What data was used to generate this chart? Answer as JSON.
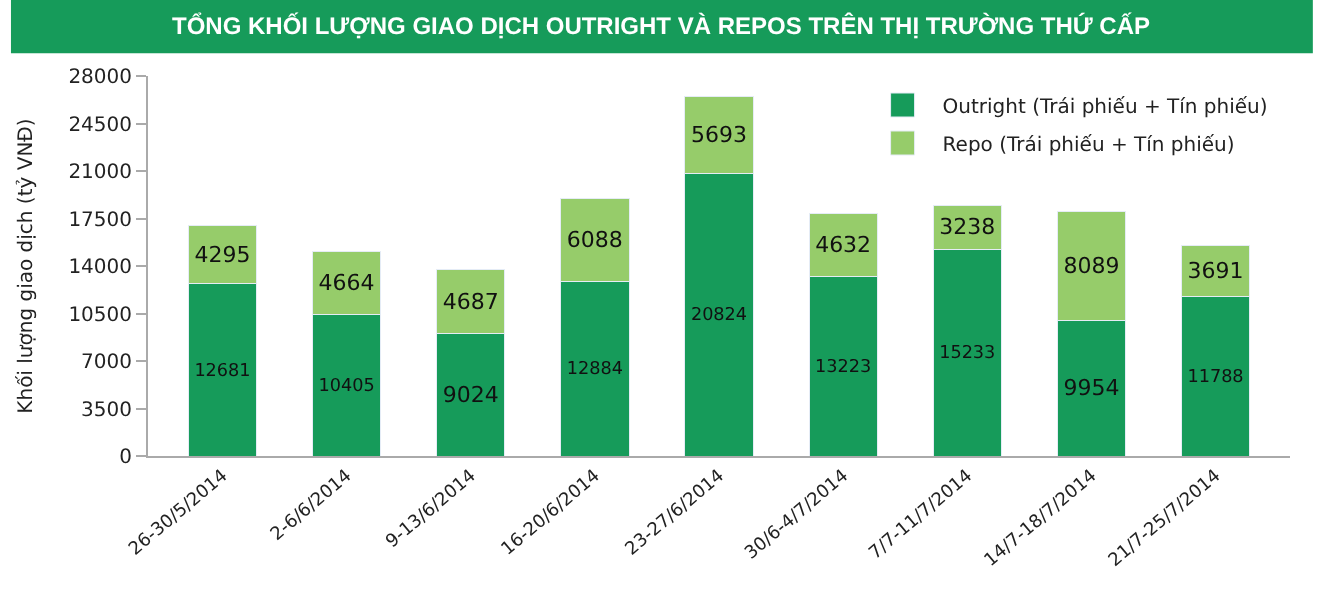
{
  "chart_data": {
    "type": "bar",
    "title": "TỔNG KHỐI LƯỢNG GIAO DỊCH OUTRIGHT VÀ REPOS TRÊN THỊ TRƯỜNG THỨ CẤP",
    "ylabel": "Khối lượng giao dịch (tỷ VNĐ)",
    "categories": [
      "26-30/5/2014",
      "2-6/6/2014",
      "9-13/6/2014",
      "16-20/6/2014",
      "23-27/6/2014",
      "30/6-4/7/2014",
      "7/7-11/7/2014",
      "14/7-18/7/2014",
      "21/7-25/7/2014"
    ],
    "series": [
      {
        "name": "Outright (Trái phiếu + Tín phiếu)",
        "color": "#169b5a",
        "values": [
          12681,
          10405,
          9024,
          12884,
          20824,
          13223,
          15233,
          9954,
          11788
        ]
      },
      {
        "name": "Repo (Trái phiếu + Tín phiếu)",
        "color": "#96cc6a",
        "values": [
          4295,
          4664,
          4687,
          6088,
          5693,
          4632,
          3238,
          8089,
          3691
        ]
      }
    ],
    "stacked": true,
    "data_labels": true,
    "ylim": [
      0,
      28000
    ],
    "yticks": [
      0,
      3500,
      7000,
      10500,
      14000,
      17500,
      21000,
      24500,
      28000
    ],
    "legend": "top right"
  }
}
